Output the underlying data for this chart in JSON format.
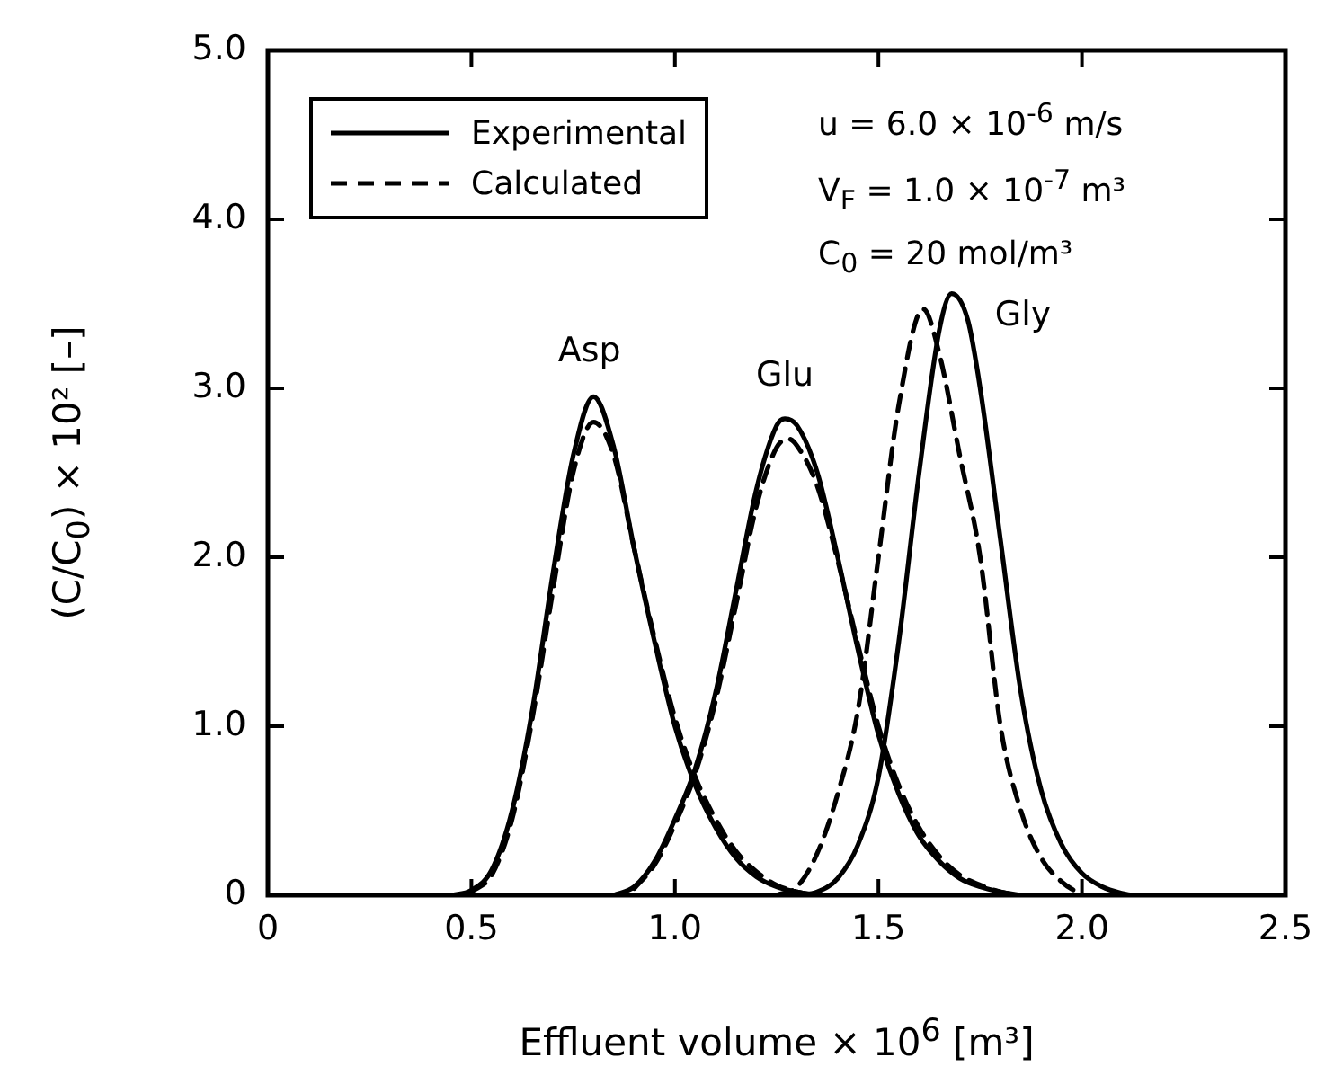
{
  "chart_data": {
    "type": "line",
    "xlabel": "Effluent volume × 10$^{6}$  [m³]",
    "ylabel": "(C/C$_{0}$) × 10²  [–]",
    "xlim": [
      0,
      2.5
    ],
    "xticks": [
      0,
      0.5,
      {
        "value": 1,
        "label": "1.0"
      },
      1.5,
      {
        "value": 2,
        "label": "2.0"
      },
      2.5
    ],
    "ylim": [
      0,
      5
    ],
    "yticks": [
      0,
      {
        "value": 1,
        "label": "1.0"
      },
      {
        "value": 2,
        "label": "2.0"
      },
      {
        "value": 3,
        "label": "3.0"
      },
      {
        "value": 4,
        "label": "4.0"
      },
      {
        "value": 5,
        "label": "5.0"
      }
    ],
    "grid": false,
    "legend": "top left",
    "marker": "none",
    "series": [
      {
        "name": "Experimental",
        "color": "#000000",
        "line_style": "solid",
        "x": [
          0.45,
          0.5,
          0.55,
          0.6,
          0.65,
          0.7,
          0.75,
          0.8,
          0.85,
          0.9,
          0.95,
          1.0,
          1.05,
          1.1,
          1.15,
          1.2,
          1.25,
          1.3,
          1.35
        ],
        "values": [
          0,
          0.03,
          0.15,
          0.5,
          1.1,
          1.9,
          2.6,
          2.95,
          2.65,
          2.05,
          1.5,
          1.0,
          0.65,
          0.4,
          0.22,
          0.11,
          0.05,
          0.02,
          0
        ]
      },
      {
        "name": "Calculated",
        "color": "#000000",
        "line_style": "dashed",
        "x": [
          0.5,
          0.55,
          0.6,
          0.65,
          0.7,
          0.75,
          0.8,
          0.85,
          0.9,
          0.95,
          1.0,
          1.05,
          1.1,
          1.15,
          1.2,
          1.25,
          1.3,
          1.35
        ],
        "values": [
          0.02,
          0.12,
          0.45,
          1.05,
          1.8,
          2.5,
          2.8,
          2.6,
          2.05,
          1.52,
          1.05,
          0.7,
          0.45,
          0.26,
          0.14,
          0.06,
          0.02,
          0
        ]
      },
      {
        "color": "#000000",
        "line_style": "solid",
        "x": [
          0.85,
          0.9,
          0.95,
          1.0,
          1.05,
          1.1,
          1.15,
          1.2,
          1.25,
          1.27,
          1.3,
          1.35,
          1.4,
          1.45,
          1.5,
          1.55,
          1.6,
          1.65,
          1.7,
          1.75,
          1.8,
          1.85
        ],
        "values": [
          0,
          0.05,
          0.2,
          0.45,
          0.75,
          1.2,
          1.8,
          2.4,
          2.78,
          2.82,
          2.78,
          2.5,
          2.0,
          1.45,
          0.95,
          0.6,
          0.35,
          0.2,
          0.1,
          0.05,
          0.02,
          0
        ]
      },
      {
        "color": "#000000",
        "line_style": "dashed",
        "x": [
          0.9,
          0.95,
          1.0,
          1.05,
          1.1,
          1.15,
          1.2,
          1.25,
          1.28,
          1.3,
          1.35,
          1.4,
          1.45,
          1.5,
          1.55,
          1.6,
          1.65,
          1.7,
          1.75,
          1.8,
          1.85
        ],
        "values": [
          0.04,
          0.18,
          0.42,
          0.72,
          1.15,
          1.72,
          2.3,
          2.65,
          2.7,
          2.66,
          2.42,
          1.98,
          1.48,
          1.0,
          0.65,
          0.4,
          0.23,
          0.12,
          0.06,
          0.02,
          0
        ]
      },
      {
        "color": "#000000",
        "line_style": "solid",
        "x": [
          1.3,
          1.35,
          1.4,
          1.45,
          1.5,
          1.55,
          1.6,
          1.65,
          1.68,
          1.72,
          1.75,
          1.8,
          1.85,
          1.9,
          1.95,
          2.0,
          2.05,
          2.1,
          2.12
        ],
        "values": [
          0,
          0.02,
          0.1,
          0.3,
          0.7,
          1.5,
          2.5,
          3.35,
          3.56,
          3.4,
          3.0,
          2.1,
          1.2,
          0.62,
          0.3,
          0.13,
          0.05,
          0.01,
          0
        ]
      },
      {
        "color": "#000000",
        "line_style": "dashed",
        "x": [
          1.25,
          1.3,
          1.35,
          1.4,
          1.45,
          1.5,
          1.55,
          1.61,
          1.65,
          1.7,
          1.75,
          1.8,
          1.85,
          1.9,
          1.95,
          2.0
        ],
        "values": [
          0,
          0.05,
          0.25,
          0.6,
          1.1,
          2.0,
          2.9,
          3.47,
          3.2,
          2.6,
          2.0,
          1.0,
          0.5,
          0.22,
          0.08,
          0
        ]
      }
    ],
    "annotations": [
      {
        "text": "Asp",
        "x": 0.79,
        "y": 2.96
      },
      {
        "text": "Glu",
        "x": 1.27,
        "y": 2.82
      },
      {
        "text": "Gly",
        "x": 1.68,
        "y": 3.56
      },
      "u = 6.0 × 10$^{-6}$ m/s",
      "V$_{F}$ = 1.0 × 10$^{-7}$ m³",
      "C$_{0}$ = 20 mol/m³"
    ]
  }
}
